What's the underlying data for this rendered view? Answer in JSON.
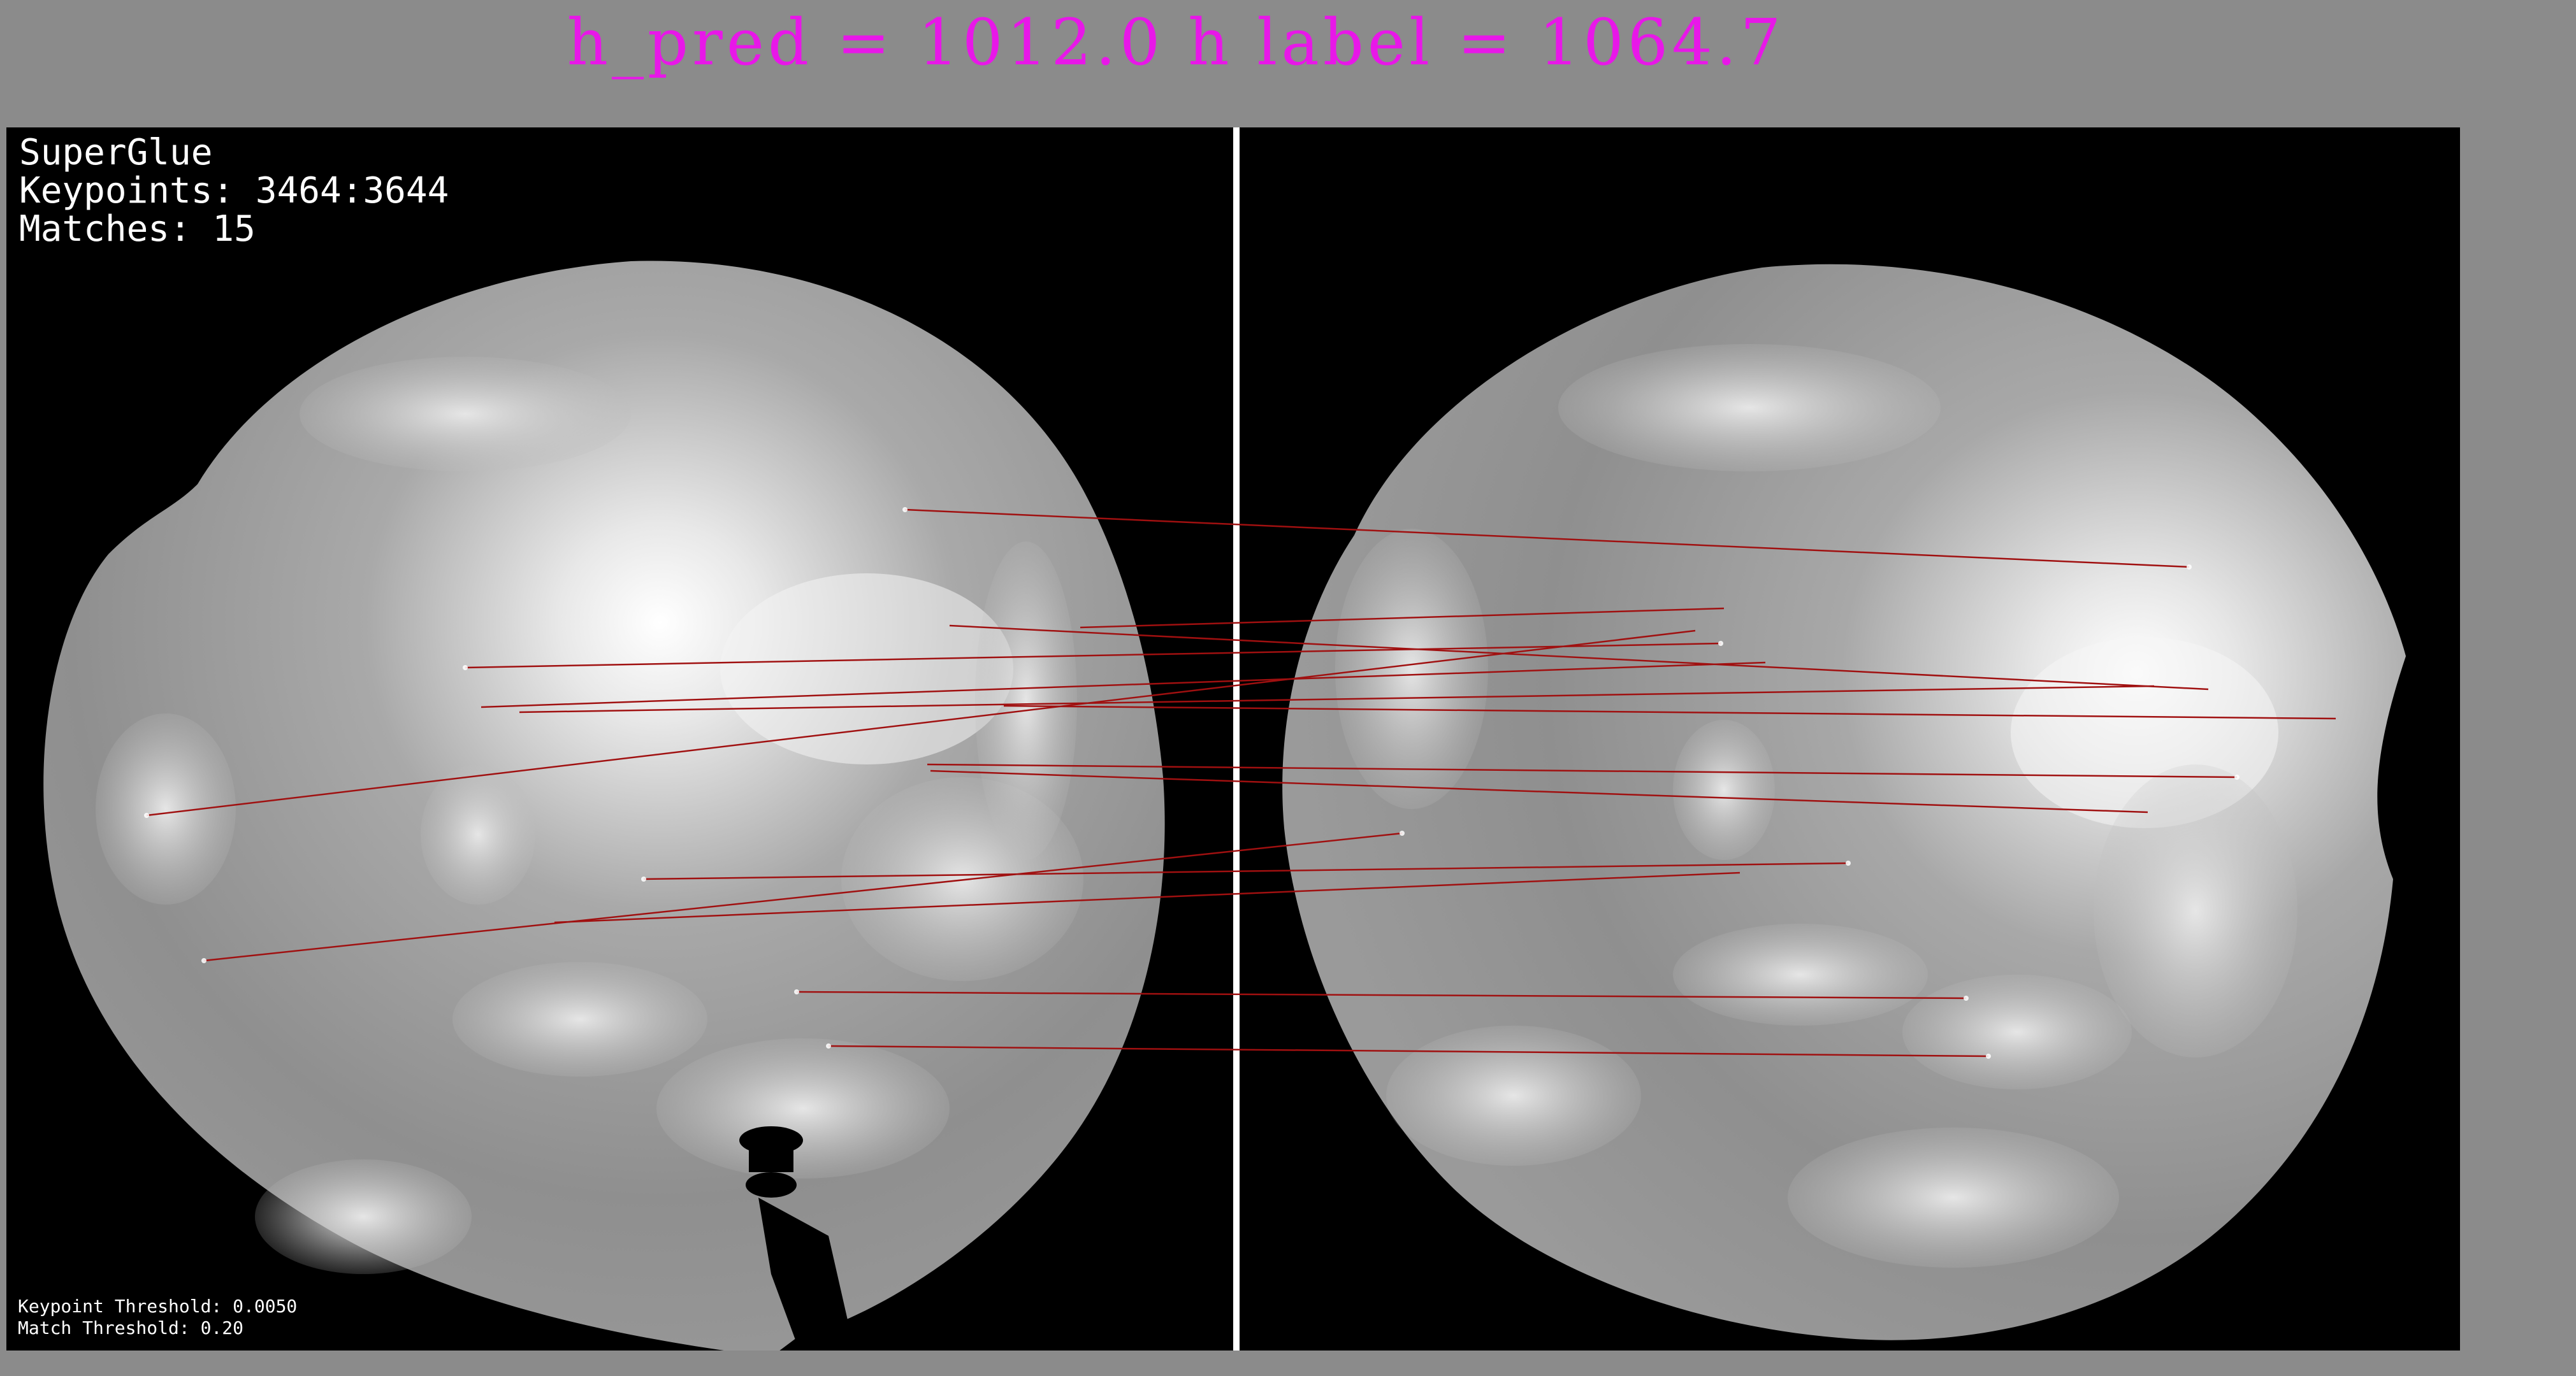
{
  "header": {
    "text": "h_pred = 1012.0 h label = 1064.7"
  },
  "overlay": {
    "method": "SuperGlue",
    "keypoints": "Keypoints: 3464:3644",
    "matches": "Matches: 15",
    "keypoint_threshold": "Keypoint Threshold: 0.0050",
    "match_threshold": "Match Threshold: 0.20"
  },
  "colors": {
    "background": "#8b8b8b",
    "title": "#e817e8",
    "match_line": "#a01010",
    "divider": "#ffffff"
  },
  "images": {
    "left": {
      "description_icon": "fisheye-sky-image",
      "sun_position": "upper-right"
    },
    "right": {
      "description_icon": "fisheye-sky-image",
      "sun_position": "right"
    }
  }
}
